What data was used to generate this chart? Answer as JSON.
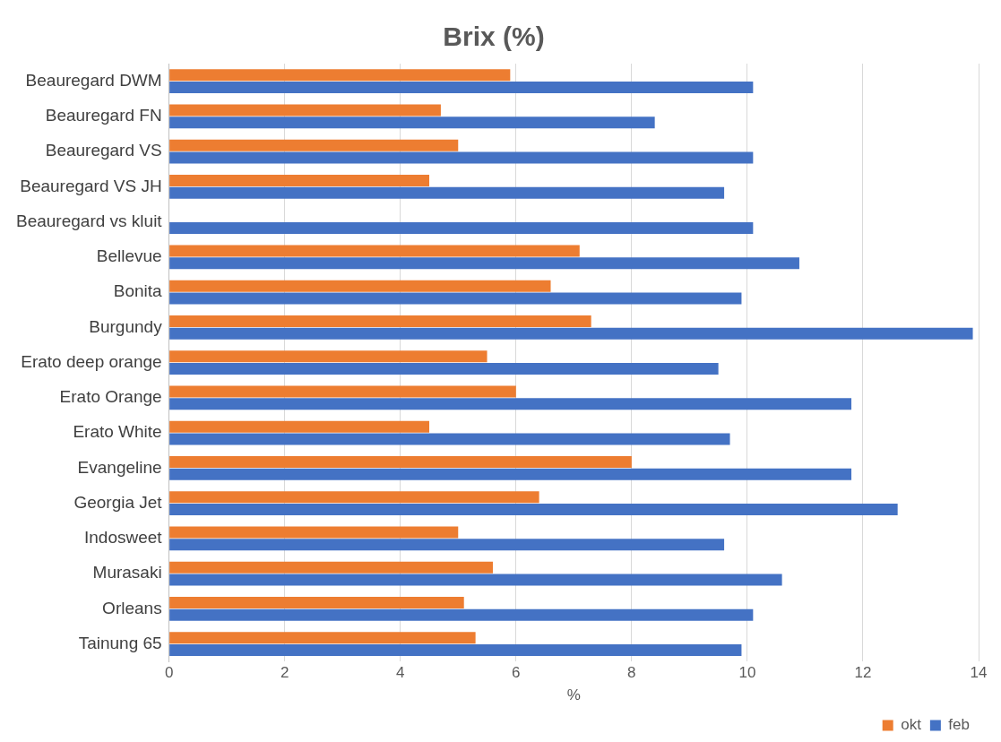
{
  "chart_data": {
    "type": "bar",
    "orientation": "horizontal",
    "title": "Brix (%)",
    "xlabel": "%",
    "categories": [
      "Beauregard DWM",
      "Beauregard FN",
      "Beauregard VS",
      "Beauregard VS JH",
      "Beauregard vs kluit",
      "Bellevue",
      "Bonita",
      "Burgundy",
      "Erato deep orange",
      "Erato Orange",
      "Erato White",
      "Evangeline",
      "Georgia Jet",
      "Indosweet",
      "Murasaki",
      "Orleans",
      "Tainung 65"
    ],
    "series": [
      {
        "name": "okt",
        "color": "#ed7d31",
        "values": [
          5.9,
          4.7,
          5.0,
          4.5,
          null,
          7.1,
          6.6,
          7.3,
          5.5,
          6.0,
          4.5,
          8.0,
          6.4,
          5.0,
          5.6,
          5.1,
          5.3
        ]
      },
      {
        "name": "feb",
        "color": "#4472c4",
        "values": [
          10.1,
          8.4,
          10.1,
          9.6,
          10.1,
          10.9,
          9.9,
          13.9,
          9.5,
          11.8,
          9.7,
          11.8,
          12.6,
          9.6,
          10.6,
          10.1,
          9.9
        ]
      }
    ],
    "xlim": [
      0,
      14
    ],
    "xticks": [
      0,
      2,
      4,
      6,
      8,
      10,
      12,
      14
    ],
    "grid": "x",
    "legend": "bottom right"
  }
}
